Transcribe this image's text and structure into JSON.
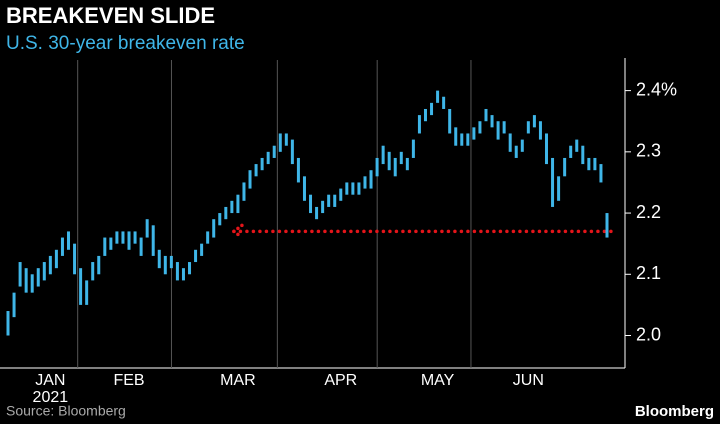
{
  "chart_data": {
    "type": "range",
    "title": "BREAKEVEN SLIDE",
    "subtitle": "U.S. 30-year breakeven rate",
    "source": "Source: Bloomberg",
    "brand": "Bloomberg",
    "year_label": "2021",
    "color": "#3fb6e8",
    "categories": [
      null,
      null,
      null,
      null,
      null,
      null,
      null,
      "JAN",
      null,
      null,
      null,
      null,
      null,
      null,
      null,
      null,
      null,
      null,
      null,
      null,
      "FEB",
      null,
      null,
      null,
      null,
      null,
      null,
      null,
      null,
      null,
      null,
      null,
      null,
      null,
      null,
      null,
      null,
      null,
      "MAR",
      null,
      null,
      null,
      null,
      null,
      null,
      null,
      null,
      null,
      null,
      null,
      null,
      null,
      null,
      null,
      null,
      "APR",
      null,
      null,
      null,
      null,
      null,
      null,
      null,
      null,
      null,
      null,
      null,
      null,
      null,
      null,
      null,
      "MAY",
      null,
      null,
      null,
      null,
      null,
      null,
      null,
      null,
      null,
      null,
      null,
      null,
      null,
      null,
      "JUN",
      null,
      null,
      null,
      null,
      null,
      null,
      null,
      null,
      null,
      null,
      null,
      null,
      null
    ],
    "low": [
      2.0,
      2.03,
      2.08,
      2.07,
      2.07,
      2.08,
      2.09,
      2.1,
      2.11,
      2.13,
      2.14,
      2.1,
      2.05,
      2.05,
      2.09,
      2.1,
      2.13,
      2.14,
      2.15,
      2.15,
      2.14,
      2.15,
      2.13,
      2.16,
      2.13,
      2.11,
      2.1,
      2.11,
      2.09,
      2.09,
      2.1,
      2.12,
      2.13,
      2.15,
      2.16,
      2.18,
      2.19,
      2.2,
      2.2,
      2.22,
      2.24,
      2.26,
      2.27,
      2.28,
      2.29,
      2.3,
      2.31,
      2.28,
      2.25,
      2.22,
      2.2,
      2.19,
      2.2,
      2.21,
      2.21,
      2.22,
      2.23,
      2.23,
      2.23,
      2.24,
      2.24,
      2.26,
      2.28,
      2.27,
      2.26,
      2.28,
      2.27,
      2.29,
      2.33,
      2.35,
      2.36,
      2.38,
      2.37,
      2.33,
      2.31,
      2.31,
      2.31,
      2.32,
      2.33,
      2.35,
      2.34,
      2.32,
      2.33,
      2.3,
      2.29,
      2.3,
      2.33,
      2.34,
      2.32,
      2.28,
      2.21,
      2.22,
      2.26,
      2.29,
      2.3,
      2.28,
      2.27,
      2.27,
      2.25,
      2.16
    ],
    "high": [
      2.04,
      2.07,
      2.12,
      2.11,
      2.1,
      2.11,
      2.12,
      2.13,
      2.14,
      2.16,
      2.17,
      2.15,
      2.11,
      2.09,
      2.12,
      2.13,
      2.16,
      2.16,
      2.17,
      2.17,
      2.17,
      2.17,
      2.16,
      2.19,
      2.18,
      2.14,
      2.13,
      2.13,
      2.12,
      2.11,
      2.12,
      2.14,
      2.15,
      2.17,
      2.19,
      2.2,
      2.21,
      2.22,
      2.23,
      2.25,
      2.27,
      2.28,
      2.29,
      2.3,
      2.31,
      2.33,
      2.33,
      2.32,
      2.29,
      2.26,
      2.23,
      2.21,
      2.22,
      2.23,
      2.23,
      2.24,
      2.25,
      2.25,
      2.25,
      2.26,
      2.27,
      2.29,
      2.31,
      2.3,
      2.29,
      2.3,
      2.29,
      2.32,
      2.36,
      2.37,
      2.38,
      2.4,
      2.39,
      2.37,
      2.34,
      2.33,
      2.33,
      2.34,
      2.35,
      2.37,
      2.36,
      2.35,
      2.35,
      2.33,
      2.31,
      2.32,
      2.35,
      2.36,
      2.35,
      2.33,
      2.29,
      2.26,
      2.29,
      2.31,
      2.32,
      2.31,
      2.29,
      2.29,
      2.28,
      2.2
    ],
    "reference": {
      "value": 2.17,
      "color": "#e3151a"
    },
    "ylim": [
      1.96,
      2.45
    ],
    "yticks": [
      {
        "value": 2.0,
        "label": "2.0"
      },
      2.1,
      2.2,
      2.3,
      {
        "value": 2.4,
        "label": "2.4%"
      }
    ]
  }
}
